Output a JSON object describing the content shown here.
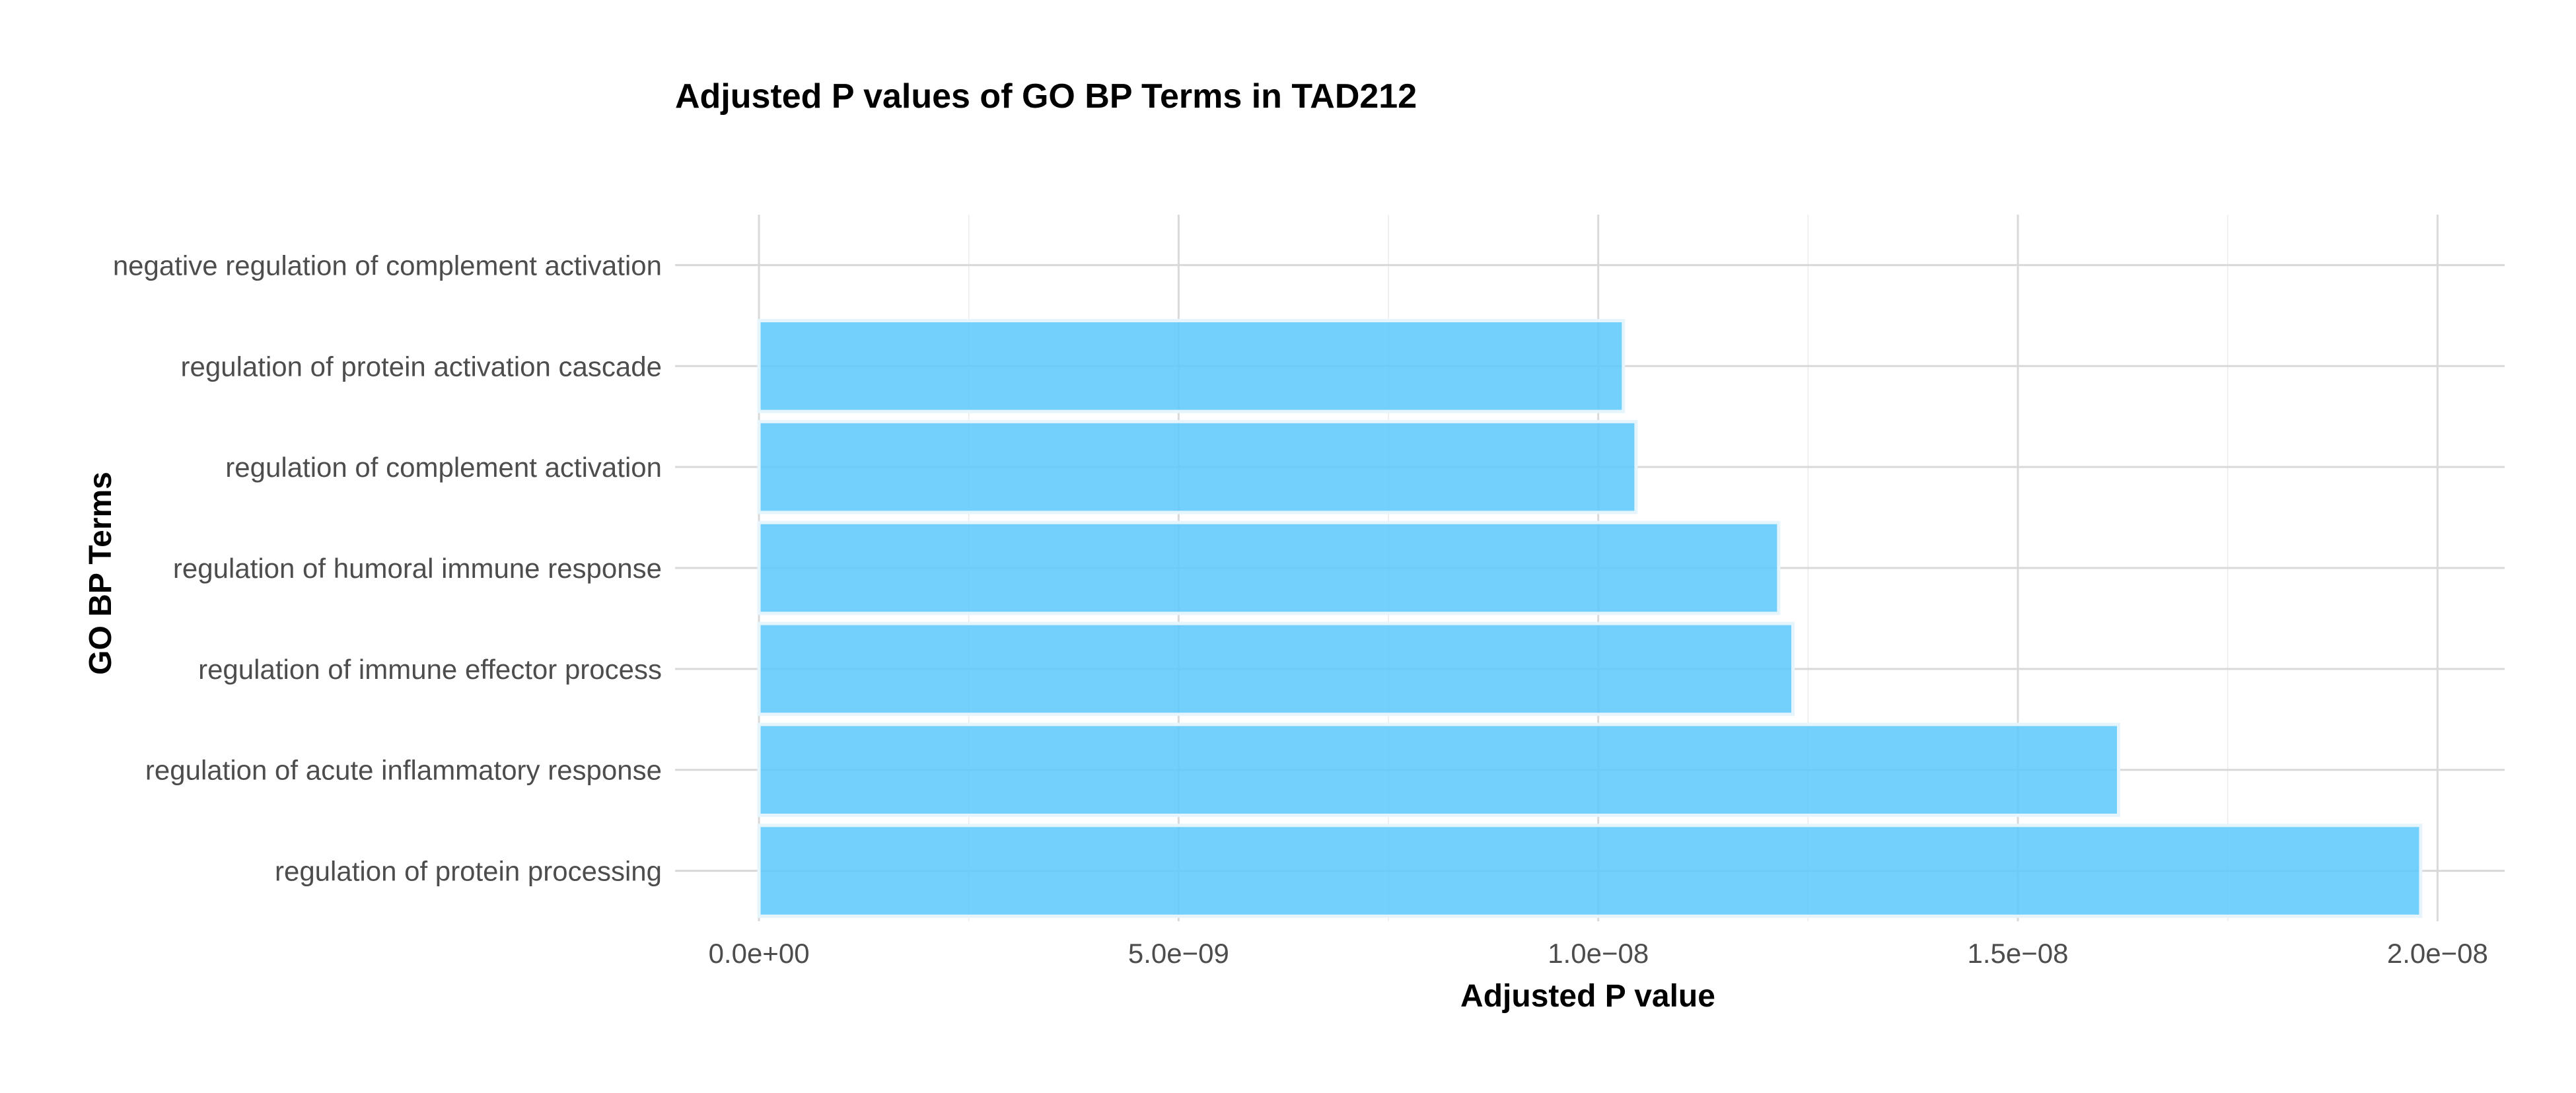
{
  "chart_data": {
    "type": "bar",
    "orientation": "horizontal",
    "title": "Adjusted P values of GO BP Terms in TAD212",
    "xlabel": "Adjusted P value",
    "ylabel": "GO BP Terms",
    "categories": [
      "negative regulation of complement activation",
      "regulation of protein activation cascade",
      "regulation of complement activation",
      "regulation of humoral immune response",
      "regulation of immune effector process",
      "regulation of acute inflammatory response",
      "regulation of protein processing"
    ],
    "values": [
      0,
      1.03e-08,
      1.045e-08,
      1.215e-08,
      1.232e-08,
      1.62e-08,
      1.98e-08
    ],
    "xlim": [
      -1e-09,
      2.08e-08
    ],
    "xticks": [
      0,
      5e-09,
      1e-08,
      1.5e-08,
      2e-08
    ],
    "xtick_labels": [
      "0.0e+00",
      "5.0e−09",
      "1.0e−08",
      "1.5e−08",
      "2.0e−08"
    ],
    "bar_color": "#5bc8fb",
    "grid": true,
    "legend": "none"
  }
}
